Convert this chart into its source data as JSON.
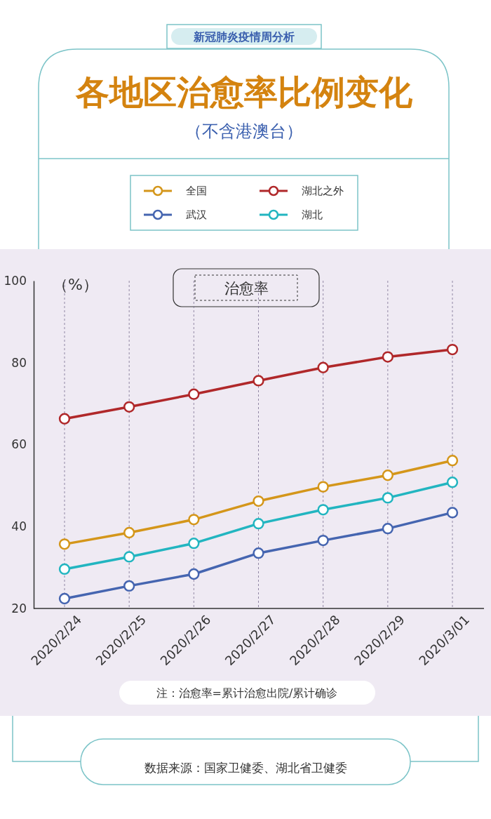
{
  "chart_data": {
    "type": "line",
    "title": "各地区治愈率比例变化",
    "subtitle": "（不含港澳台）",
    "ylabel": "（%）",
    "annotations": [
      "新冠肺炎疫情周分析",
      "治愈率",
      "注：治愈率=累计治愈出院/累计确诊",
      "数据来源：国家卫健委、湖北省卫健委"
    ],
    "categories": [
      "2020/2/24",
      "2020/2/25",
      "2020/2/26",
      "2020/2/27",
      "2020/2/28",
      "2020/2/29",
      "2020/3/01"
    ],
    "series": [
      {
        "name": "全国",
        "color": "#d4961a",
        "values": [
          35.7,
          38.5,
          41.7,
          46.2,
          49.7,
          52.5,
          56.1
        ]
      },
      {
        "name": "湖北之外",
        "color": "#b0282a",
        "values": [
          66.3,
          69.2,
          72.3,
          75.6,
          78.8,
          81.4,
          83.2
        ]
      },
      {
        "name": "武汉",
        "color": "#4565b0",
        "values": [
          22.4,
          25.5,
          28.4,
          33.5,
          36.6,
          39.5,
          43.4
        ]
      },
      {
        "name": "湖北",
        "color": "#22b5c0",
        "values": [
          29.6,
          32.6,
          35.9,
          40.7,
          44.1,
          47.0,
          50.8
        ]
      }
    ],
    "ylim": [
      20,
      100
    ],
    "yticks": [
      20,
      40,
      60,
      80,
      100
    ],
    "grid": "x",
    "legend": "top",
    "marker": "circle",
    "line_style": "solid"
  }
}
